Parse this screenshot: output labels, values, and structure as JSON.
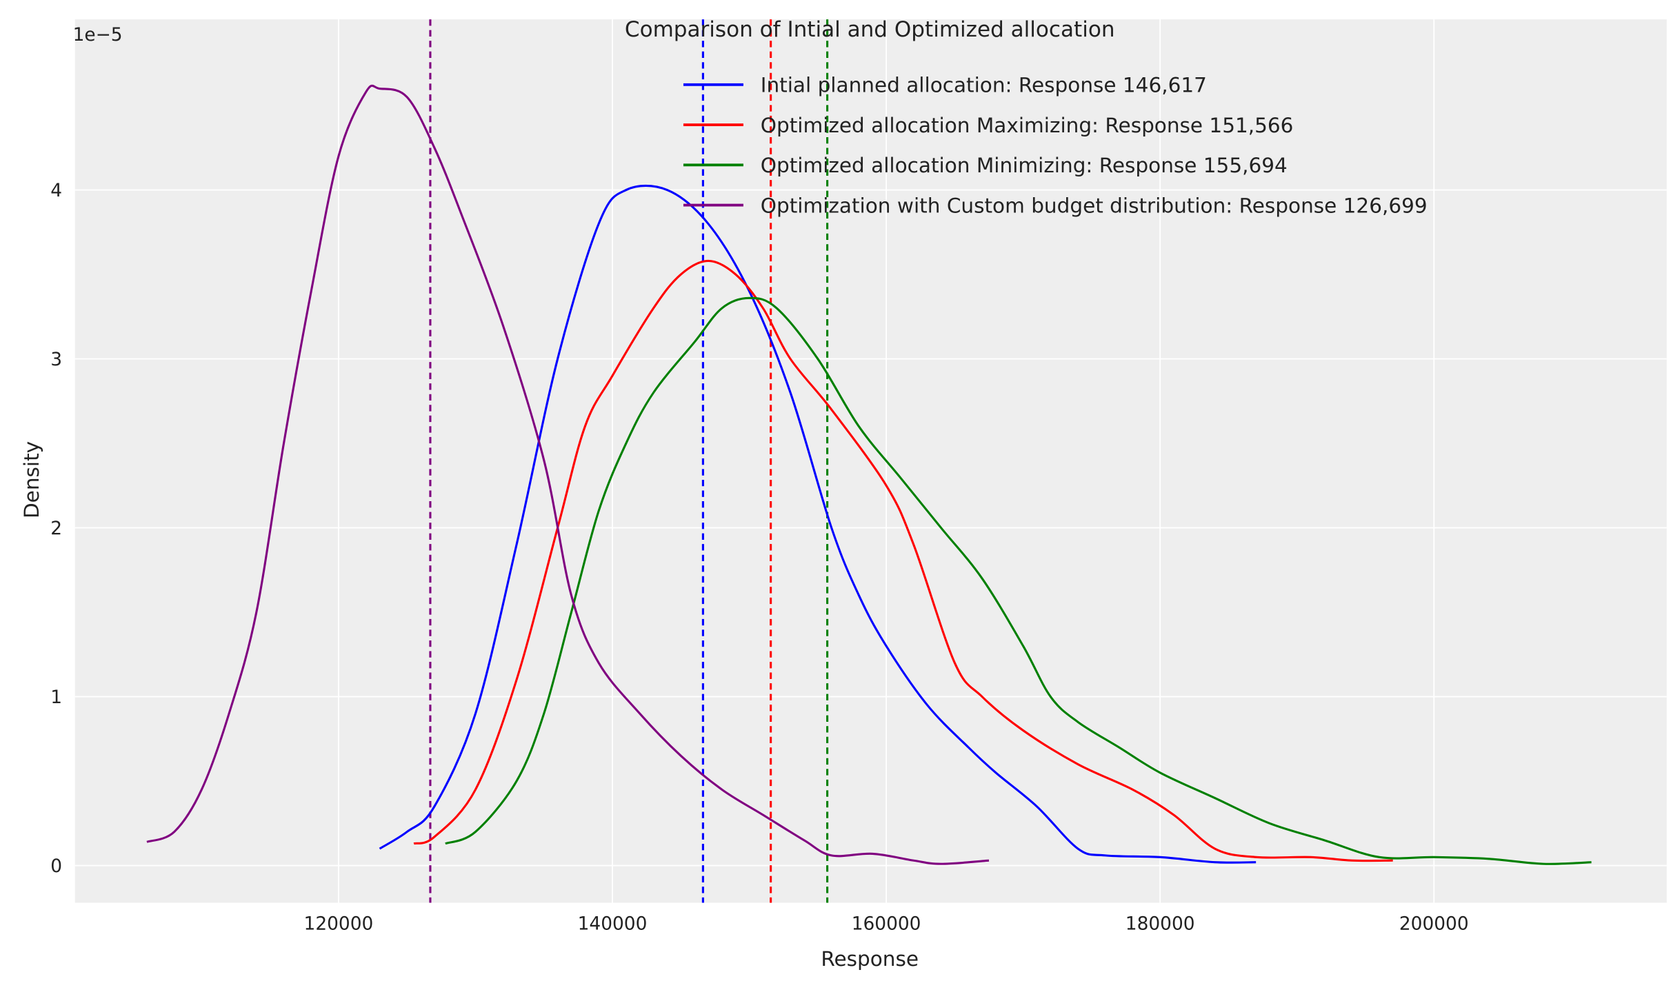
{
  "chart_data": {
    "type": "line",
    "title": "Comparison of Intial and Optimized allocation",
    "xlabel": "Response",
    "ylabel": "Density",
    "y_offset_label": "1e−5",
    "xlim": [
      100750,
      217000
    ],
    "ylim": [
      -0.22,
      5.01
    ],
    "xticks": [
      120000,
      140000,
      160000,
      180000,
      200000
    ],
    "xtick_labels": [
      "120000",
      "140000",
      "160000",
      "180000",
      "200000"
    ],
    "yticks": [
      0,
      1,
      2,
      3,
      4
    ],
    "ytick_labels": [
      "0",
      "1",
      "2",
      "3",
      "4"
    ],
    "grid": true,
    "background": "#eeeeee",
    "legend_position": "top-right",
    "series": [
      {
        "name": "Intial planned allocation: Response 146,617",
        "color": "#0000ff",
        "mean": 146617,
        "x": [
          123000,
          125000,
          127000,
          130000,
          133000,
          136000,
          139000,
          141000,
          144000,
          147000,
          150000,
          153000,
          156000,
          158000,
          160000,
          163000,
          166000,
          168000,
          171000,
          174000,
          176000,
          180000,
          184000,
          187000
        ],
        "y": [
          0.1,
          0.2,
          0.35,
          0.9,
          1.9,
          3.0,
          3.8,
          4.0,
          4.0,
          3.8,
          3.4,
          2.8,
          2.0,
          1.6,
          1.3,
          0.95,
          0.7,
          0.55,
          0.35,
          0.1,
          0.06,
          0.05,
          0.02,
          0.02
        ]
      },
      {
        "name": "Optimized allocation Maximizing: Response 151,566",
        "color": "#ff0000",
        "mean": 151566,
        "x": [
          125500,
          127000,
          130000,
          133000,
          136000,
          138000,
          140000,
          143000,
          145000,
          147000,
          149000,
          151000,
          153000,
          156000,
          160000,
          162000,
          165000,
          167000,
          170000,
          174000,
          178000,
          181000,
          184000,
          187000,
          191000,
          194000,
          197000
        ],
        "y": [
          0.13,
          0.17,
          0.45,
          1.1,
          2.0,
          2.6,
          2.9,
          3.3,
          3.5,
          3.58,
          3.5,
          3.3,
          3.0,
          2.7,
          2.25,
          1.9,
          1.2,
          1.0,
          0.8,
          0.6,
          0.45,
          0.3,
          0.1,
          0.05,
          0.05,
          0.03,
          0.03
        ]
      },
      {
        "name": "Optimized allocation Minimizing: Response 155,694",
        "color": "#008000",
        "mean": 155694,
        "x": [
          127800,
          130000,
          133000,
          135000,
          137000,
          139000,
          141000,
          143000,
          146000,
          148000,
          150000,
          152000,
          155000,
          158000,
          161000,
          164000,
          167000,
          170000,
          172000,
          174000,
          177000,
          180000,
          184000,
          188000,
          192000,
          196000,
          200000,
          204000,
          208000,
          211500
        ],
        "y": [
          0.13,
          0.2,
          0.5,
          0.9,
          1.5,
          2.1,
          2.5,
          2.8,
          3.1,
          3.3,
          3.36,
          3.3,
          3.0,
          2.6,
          2.3,
          2.0,
          1.7,
          1.3,
          1.0,
          0.85,
          0.7,
          0.55,
          0.4,
          0.25,
          0.15,
          0.05,
          0.05,
          0.04,
          0.01,
          0.02
        ]
      },
      {
        "name": "Optimization with Custom budget distribution: Response 126,699",
        "color": "#800080",
        "mean": 126699,
        "x": [
          106000,
          108000,
          110000,
          112000,
          114000,
          116000,
          118000,
          120000,
          122000,
          123000,
          125000,
          127000,
          129000,
          132000,
          135000,
          137000,
          139000,
          142000,
          145000,
          148000,
          151000,
          154000,
          156000,
          159000,
          162000,
          164000,
          167500
        ],
        "y": [
          0.14,
          0.2,
          0.45,
          0.9,
          1.5,
          2.5,
          3.4,
          4.2,
          4.58,
          4.6,
          4.55,
          4.25,
          3.85,
          3.2,
          2.4,
          1.6,
          1.2,
          0.9,
          0.65,
          0.45,
          0.3,
          0.15,
          0.06,
          0.07,
          0.03,
          0.01,
          0.03
        ]
      }
    ]
  }
}
